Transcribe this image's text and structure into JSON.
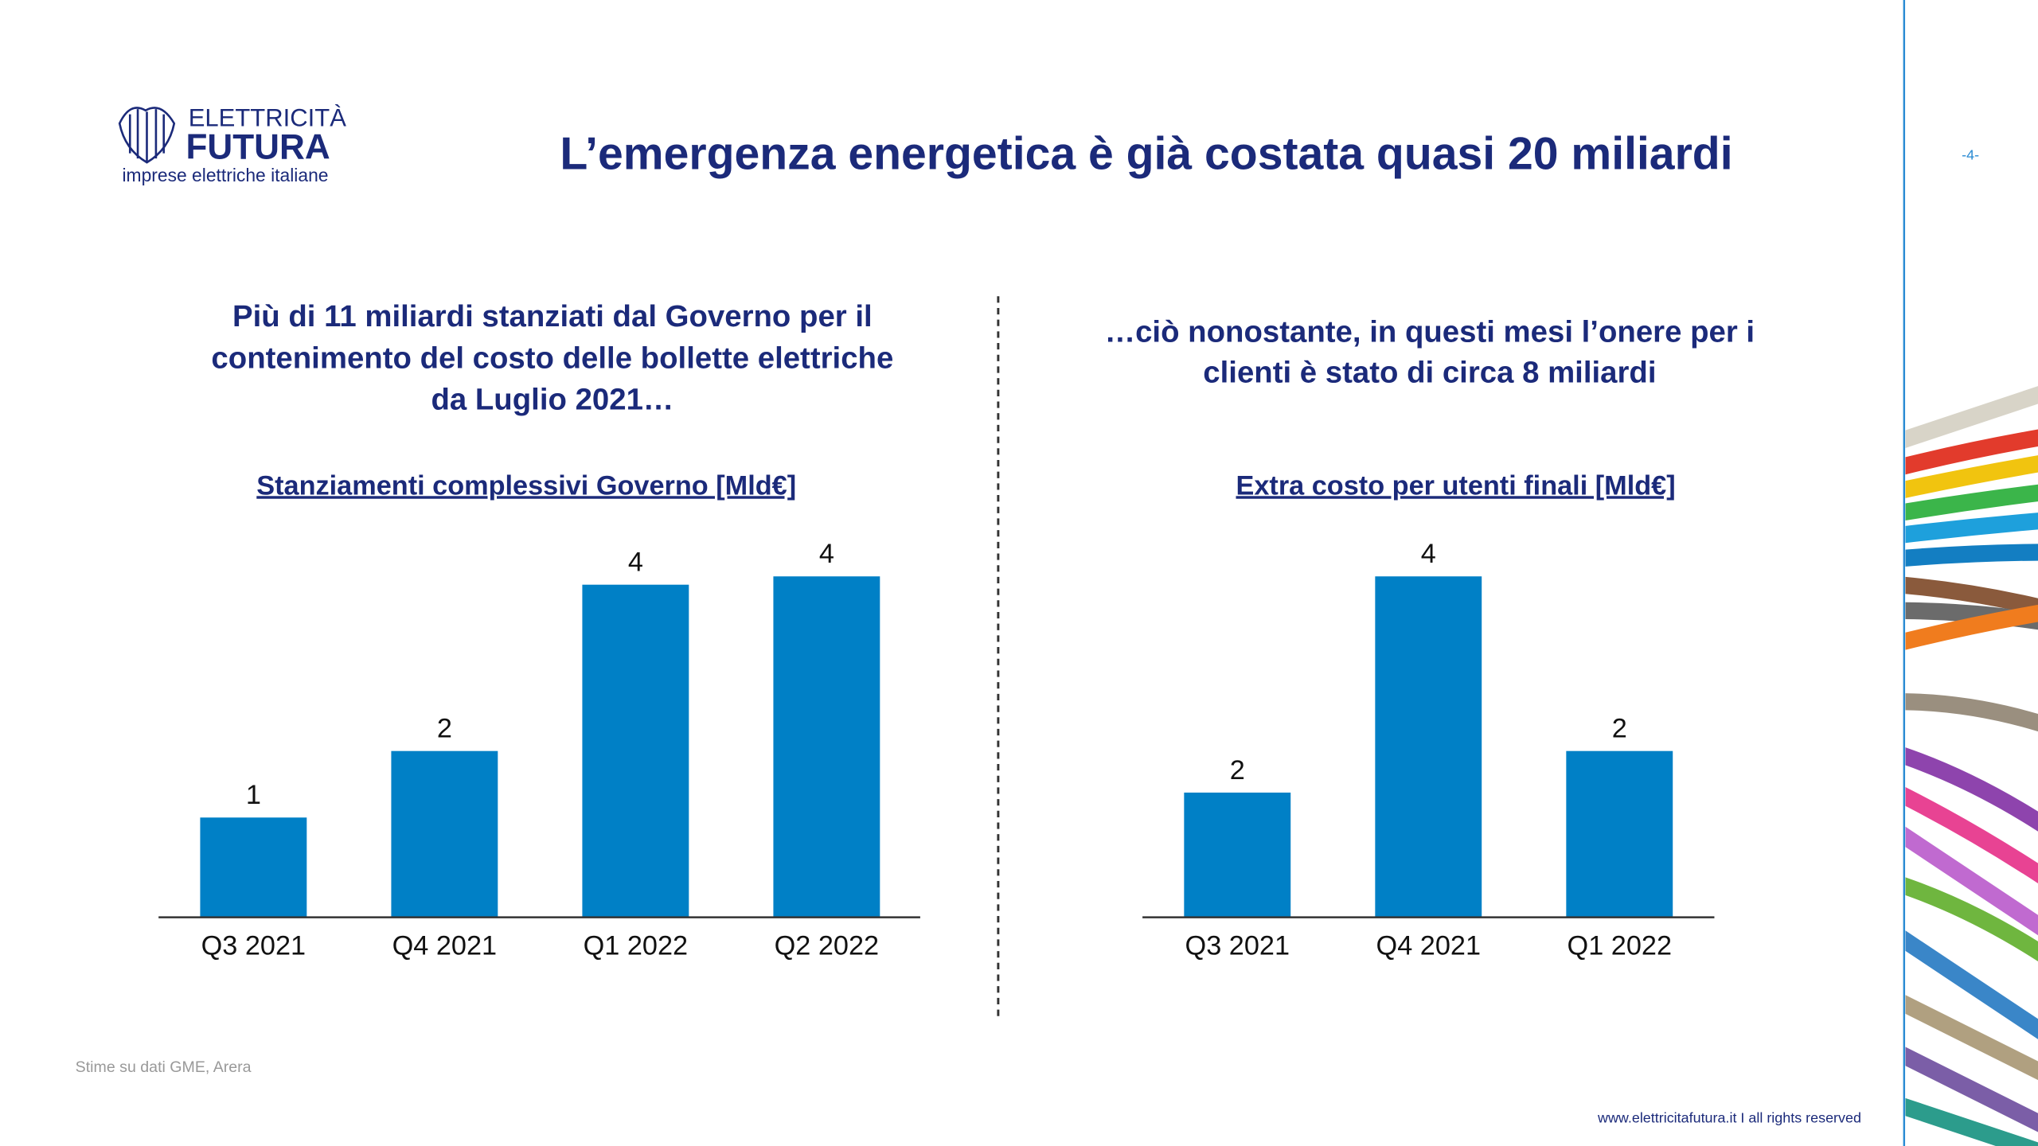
{
  "slide": {
    "logo": {
      "name": "ELETTRICITÀ",
      "brand": "FUTURA",
      "tagline": "imprese elettriche italiane"
    },
    "title": "L’emergenza energetica è già costata quasi 20 miliardi",
    "page_number": "-4-",
    "left_heading": [
      "Più di 11 miliardi stanziati dal Governo per il",
      "contenimento del costo delle bollette elettriche",
      "da Luglio 2021…"
    ],
    "right_heading": [
      "…ciò nonostante, in questi mesi l’onere per i",
      "clienti è stato di circa 8 miliardi"
    ],
    "source": "Stime su dati GME, Arera",
    "footer": "www.elettricitafutura.it I all rights reserved"
  },
  "chart_data": [
    {
      "type": "bar",
      "title": "Stanziamenti complessivi Governo [Mld€]",
      "categories": [
        "Q3 2021",
        "Q4 2021",
        "Q1 2022",
        "Q2 2022"
      ],
      "values": [
        1.2,
        2.0,
        4.0,
        4.1
      ],
      "value_labels": [
        "1",
        "2",
        "4",
        "4"
      ],
      "color": "#0080c6"
    },
    {
      "type": "bar",
      "title": "Extra costo per utenti finali [Mld€]",
      "categories": [
        "Q3 2021",
        "Q4 2021",
        "Q1 2022"
      ],
      "values": [
        1.5,
        4.1,
        2.0
      ],
      "value_labels": [
        "2",
        "4",
        "2"
      ],
      "color": "#0080c6"
    }
  ]
}
